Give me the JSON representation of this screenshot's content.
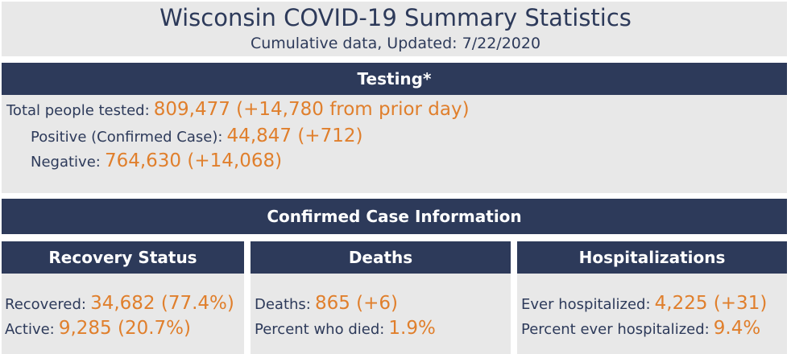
{
  "header": {
    "title": "Wisconsin COVID-19 Summary Statistics",
    "subtitle": "Cumulative data, Updated: 7/22/2020"
  },
  "testing": {
    "heading": "Testing*",
    "total_label": "Total people tested:",
    "total_value": "809,477 (+14,780 from prior day)",
    "positive_label": "Positive (Confirmed Case):",
    "positive_value": "44,847 (+712)",
    "negative_label": "Negative:",
    "negative_value": "764,630 (+14,068)"
  },
  "confirmed": {
    "heading": "Confirmed Case Information",
    "recovery": {
      "heading": "Recovery Status",
      "recovered_label": "Recovered:",
      "recovered_value": "34,682 (77.4%)",
      "active_label": "Active:",
      "active_value": "9,285 (20.7%)"
    },
    "deaths": {
      "heading": "Deaths",
      "deaths_label": "Deaths:",
      "deaths_value": "865 (+6)",
      "percent_label": "Percent who died:",
      "percent_value": "1.9%"
    },
    "hospitalizations": {
      "heading": "Hospitalizations",
      "ever_label": "Ever hospitalized:",
      "ever_value": "4,225 (+31)",
      "percent_label": "Percent ever hospitalized:",
      "percent_value": "9.4%"
    }
  },
  "colors": {
    "navy": "#2d3a5a",
    "orange": "#e07f2c",
    "panel_gray": "#e8e8e8"
  }
}
